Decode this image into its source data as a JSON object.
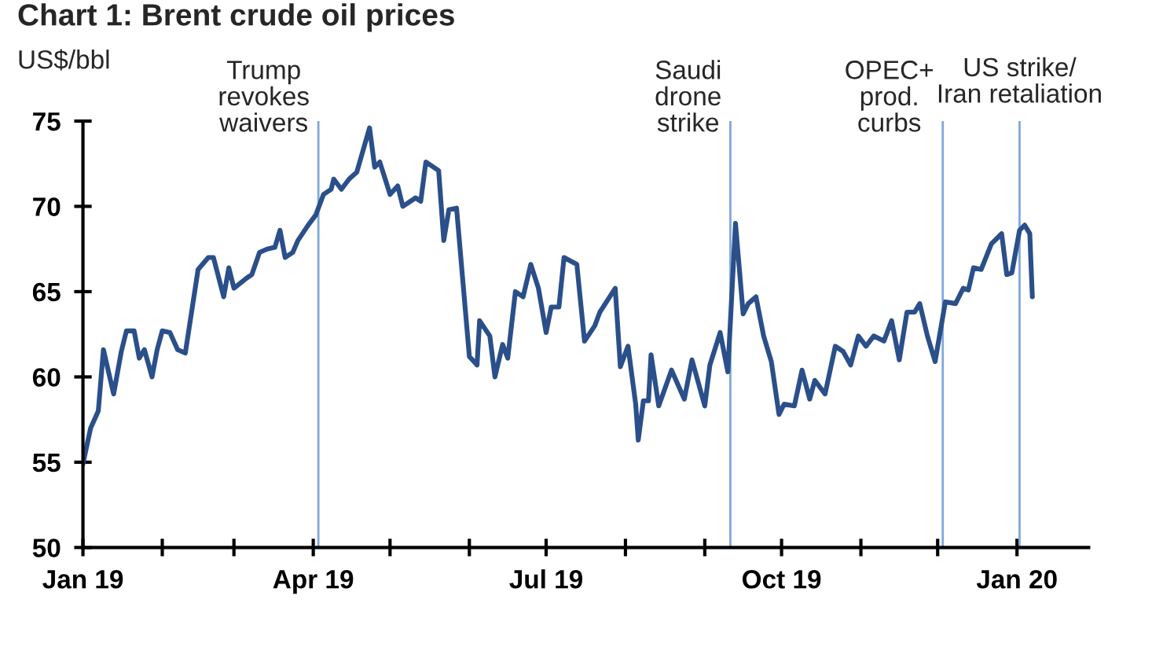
{
  "chart_data": {
    "type": "line",
    "title": "Chart 1: Brent crude oil prices",
    "ylabel": "US$/bbl",
    "x": [
      "2019-01-01",
      "2019-01-04",
      "2019-01-07",
      "2019-01-09",
      "2019-01-13",
      "2019-01-16",
      "2019-01-18",
      "2019-01-21",
      "2019-01-23",
      "2019-01-25",
      "2019-01-28",
      "2019-01-30",
      "2019-02-01",
      "2019-02-04",
      "2019-02-07",
      "2019-02-10",
      "2019-02-15",
      "2019-02-19",
      "2019-02-21",
      "2019-02-25",
      "2019-02-27",
      "2019-03-01",
      "2019-03-06",
      "2019-03-08",
      "2019-03-11",
      "2019-03-14",
      "2019-03-17",
      "2019-03-19",
      "2019-03-21",
      "2019-03-24",
      "2019-03-26",
      "2019-03-30",
      "2019-04-02",
      "2019-04-05",
      "2019-04-08",
      "2019-04-09",
      "2019-04-12",
      "2019-04-15",
      "2019-04-18",
      "2019-04-23",
      "2019-04-25",
      "2019-04-27",
      "2019-05-01",
      "2019-05-04",
      "2019-05-06",
      "2019-05-11",
      "2019-05-13",
      "2019-05-15",
      "2019-05-20",
      "2019-05-22",
      "2019-05-24",
      "2019-05-27",
      "2019-06-01",
      "2019-06-04",
      "2019-06-05",
      "2019-06-09",
      "2019-06-11",
      "2019-06-14",
      "2019-06-16",
      "2019-06-19",
      "2019-06-22",
      "2019-06-25",
      "2019-06-28",
      "2019-07-01",
      "2019-07-03",
      "2019-07-06",
      "2019-07-08",
      "2019-07-13",
      "2019-07-16",
      "2019-07-20",
      "2019-07-22",
      "2019-07-28",
      "2019-07-30",
      "2019-08-02",
      "2019-08-05",
      "2019-08-06",
      "2019-08-08",
      "2019-08-10",
      "2019-08-11",
      "2019-08-14",
      "2019-08-19",
      "2019-08-24",
      "2019-08-27",
      "2019-09-01",
      "2019-09-03",
      "2019-09-07",
      "2019-09-10",
      "2019-09-13",
      "2019-09-16",
      "2019-09-18",
      "2019-09-21",
      "2019-09-24",
      "2019-09-27",
      "2019-09-30",
      "2019-10-02",
      "2019-10-06",
      "2019-10-09",
      "2019-10-12",
      "2019-10-14",
      "2019-10-18",
      "2019-10-22",
      "2019-10-25",
      "2019-10-28",
      "2019-10-31",
      "2019-11-03",
      "2019-11-06",
      "2019-11-10",
      "2019-11-13",
      "2019-11-16",
      "2019-11-19",
      "2019-11-22",
      "2019-11-24",
      "2019-11-27",
      "2019-11-30",
      "2019-12-04",
      "2019-12-08",
      "2019-12-11",
      "2019-12-13",
      "2019-12-15",
      "2019-12-18",
      "2019-12-22",
      "2019-12-26",
      "2019-12-28",
      "2019-12-30",
      "2020-01-02",
      "2020-01-04",
      "2020-01-06",
      "2020-01-07"
    ],
    "series": [
      {
        "color": "#2a4f8a",
        "values": [
          54.9,
          57.0,
          58.0,
          61.6,
          59.0,
          61.5,
          62.7,
          62.7,
          61.1,
          61.6,
          60.0,
          61.6,
          62.7,
          62.6,
          61.6,
          61.4,
          66.3,
          67.0,
          67.0,
          64.7,
          66.4,
          65.2,
          65.8,
          66.0,
          67.3,
          67.5,
          67.6,
          68.6,
          67.0,
          67.3,
          68.0,
          68.9,
          69.5,
          70.7,
          71.0,
          71.6,
          71.0,
          71.6,
          72.0,
          74.6,
          72.3,
          72.6,
          70.7,
          71.2,
          70.0,
          70.5,
          70.3,
          72.6,
          72.1,
          68.0,
          69.8,
          69.9,
          61.2,
          60.7,
          63.3,
          62.4,
          60.0,
          61.9,
          61.1,
          65.0,
          64.7,
          66.6,
          65.2,
          62.6,
          64.1,
          64.1,
          67.0,
          66.6,
          62.1,
          63.0,
          63.8,
          65.2,
          60.6,
          61.8,
          58.4,
          56.3,
          58.6,
          58.6,
          61.3,
          58.3,
          60.4,
          58.7,
          61.0,
          58.3,
          60.7,
          62.6,
          60.3,
          69.0,
          63.7,
          64.3,
          64.7,
          62.4,
          60.9,
          57.8,
          58.4,
          58.3,
          60.4,
          58.7,
          59.8,
          59.0,
          61.8,
          61.5,
          60.7,
          62.4,
          61.8,
          62.4,
          62.1,
          63.3,
          61.0,
          63.8,
          63.8,
          64.3,
          62.4,
          60.9,
          64.4,
          64.3,
          65.2,
          65.1,
          66.4,
          66.3,
          67.8,
          68.4,
          66.0,
          66.1,
          68.6,
          68.9,
          68.4,
          64.7
        ]
      }
    ],
    "xlim": [
      "2019-01-01",
      "2020-01-29"
    ],
    "xticks": [
      {
        "value": "2019-01-01",
        "label": "Jan 19"
      },
      {
        "value": "2019-02-01",
        "label": null
      },
      {
        "value": "2019-03-01",
        "label": null
      },
      {
        "value": "2019-04-01",
        "label": "Apr 19"
      },
      {
        "value": "2019-05-01",
        "label": null
      },
      {
        "value": "2019-06-01",
        "label": null
      },
      {
        "value": "2019-07-01",
        "label": "Jul 19"
      },
      {
        "value": "2019-08-01",
        "label": null
      },
      {
        "value": "2019-09-01",
        "label": null
      },
      {
        "value": "2019-10-01",
        "label": "Oct 19"
      },
      {
        "value": "2019-11-01",
        "label": null
      },
      {
        "value": "2019-12-01",
        "label": null
      },
      {
        "value": "2020-01-01",
        "label": "Jan 20"
      }
    ],
    "ylim": [
      50,
      75
    ],
    "yticks": [
      50,
      55,
      60,
      65,
      70,
      75
    ],
    "ref_lines": [
      {
        "axis": "x",
        "value": "2019-04-03",
        "label": "Trump\nrevokes\nwaivers",
        "color": "#7fa8d8"
      },
      {
        "axis": "x",
        "value": "2019-09-11",
        "label": "Saudi\ndrone\nstrike",
        "color": "#7fa8d8"
      },
      {
        "axis": "x",
        "value": "2019-12-03",
        "label": "OPEC+\nprod.\ncurbs",
        "color": "#7fa8d8"
      },
      {
        "axis": "x",
        "value": "2020-01-02",
        "label": "US strike/\nIran retaliation",
        "color": "#7fa8d8"
      }
    ],
    "grid": false,
    "legend": false,
    "line_style": "solid",
    "marker": "none"
  }
}
